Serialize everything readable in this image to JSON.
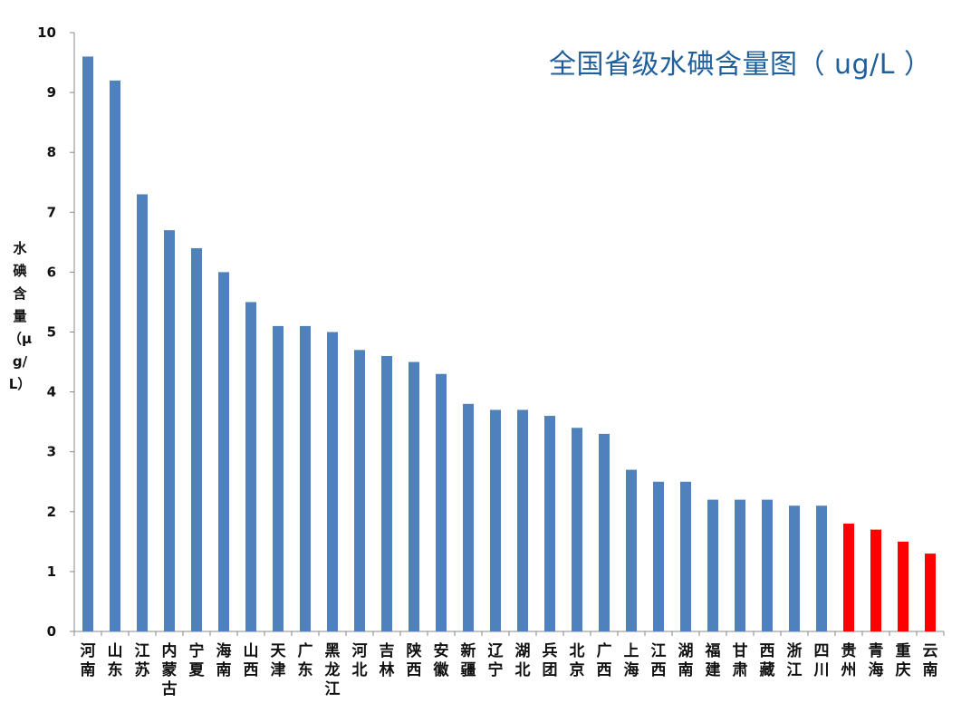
{
  "chart_data": {
    "type": "bar",
    "title": "全国省级水碘含量图（ ug/L ）",
    "ylabel": "水碘含量（μg/L）",
    "xlabel": "",
    "ylim": [
      0,
      10
    ],
    "yticks": [
      "0",
      "1",
      "2",
      "3",
      "4",
      "5",
      "6",
      "7",
      "8",
      "9",
      "10"
    ],
    "grid": false,
    "legend": "none",
    "colors": {
      "default": "#4f81bd",
      "highlight": "#ff0000"
    },
    "categories": [
      "河南",
      "山东",
      "江苏",
      "内蒙古",
      "宁夏",
      "海南",
      "山西",
      "天津",
      "广东",
      "黑龙江",
      "河北",
      "吉林",
      "陕西",
      "安徽",
      "新疆",
      "辽宁",
      "湖北",
      "兵团",
      "北京",
      "广西",
      "上海",
      "江西",
      "湖南",
      "福建",
      "甘肃",
      "西藏",
      "浙江",
      "四川",
      "贵州",
      "青海",
      "重庆",
      "云南"
    ],
    "values": [
      9.6,
      9.2,
      7.3,
      6.7,
      6.4,
      6.0,
      5.5,
      5.1,
      5.1,
      5.0,
      4.7,
      4.6,
      4.5,
      4.3,
      3.8,
      3.7,
      3.7,
      3.6,
      3.4,
      3.3,
      2.7,
      2.5,
      2.5,
      2.2,
      2.2,
      2.2,
      2.1,
      2.1,
      1.8,
      1.7,
      1.5,
      1.3
    ],
    "highlighted": [
      "贵州",
      "青海",
      "重庆",
      "云南"
    ]
  }
}
